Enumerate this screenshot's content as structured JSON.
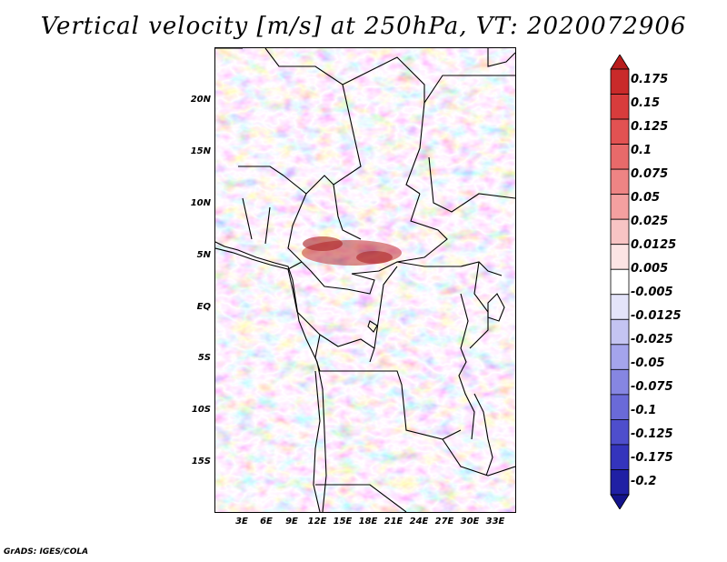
{
  "title": "Vertical velocity [m/s] at 250hPa, VT: 2020072906",
  "latitude_labels": [
    "20N",
    "15N",
    "10N",
    "5N",
    "EQ",
    "5S",
    "10S",
    "15S"
  ],
  "longitude_labels": [
    "3E",
    "6E",
    "9E",
    "12E",
    "15E",
    "18E",
    "21E",
    "24E",
    "27E",
    "30E",
    "33E"
  ],
  "colorbar": {
    "labels": [
      "0.175",
      "0.15",
      "0.125",
      "0.1",
      "0.075",
      "0.05",
      "0.025",
      "0.0125",
      "0.005",
      "-0.005",
      "-0.0125",
      "-0.025",
      "-0.05",
      "-0.075",
      "-0.1",
      "-0.125",
      "-0.175",
      "-0.2"
    ],
    "colors": [
      "#b81c1c",
      "#c92a2a",
      "#d83c3c",
      "#e25252",
      "#e86a6a",
      "#ee8484",
      "#f4a0a0",
      "#f8c4c4",
      "#fce4e4",
      "#ffffff",
      "#e4e4fa",
      "#c4c4f2",
      "#a4a4ec",
      "#8686e2",
      "#6a6ad8",
      "#4e4ecc",
      "#3434bc",
      "#2020a4",
      "#14148c"
    ]
  },
  "credit": "GrADS: IGES/COLA"
}
